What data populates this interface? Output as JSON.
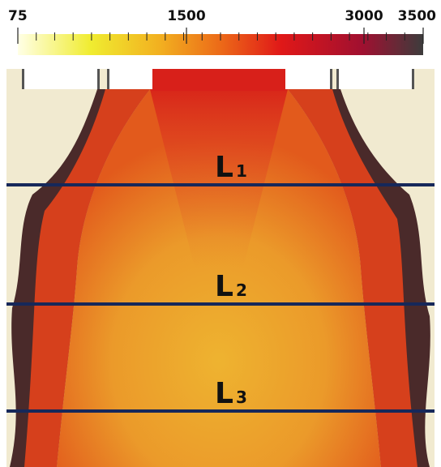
{
  "colorbar": {
    "ticks": [
      75,
      1500,
      3000,
      3500
    ]
  },
  "probe_lines": [
    {
      "letter": "L",
      "index": "1"
    },
    {
      "letter": "L",
      "index": "2"
    },
    {
      "letter": "L",
      "index": "3"
    }
  ]
}
